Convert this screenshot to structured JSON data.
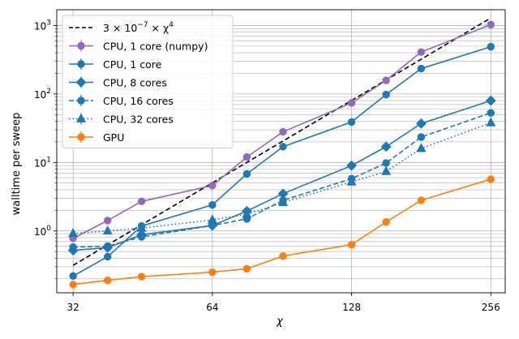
{
  "chart_data": {
    "type": "line",
    "xlabel": "χ",
    "ylabel": "walltime per sweep",
    "x_scale": "log2",
    "y_scale": "log10",
    "xlim": [
      29.5,
      275
    ],
    "ylim": [
      0.125,
      1700
    ],
    "x_ticks": [
      {
        "value": 32,
        "label": "32"
      },
      {
        "value": 64,
        "label": "64"
      },
      {
        "value": 128,
        "label": "128"
      },
      {
        "value": 256,
        "label": "256"
      }
    ],
    "y_ticks": [
      {
        "value": 1,
        "label_base": "10",
        "label_exp": "0"
      },
      {
        "value": 10,
        "label_base": "10",
        "label_exp": "1"
      },
      {
        "value": 100,
        "label_base": "10",
        "label_exp": "2"
      },
      {
        "value": 1000,
        "label_base": "10",
        "label_exp": "3"
      }
    ],
    "grid": true,
    "legend_position": "top-left",
    "reference_line": {
      "label_parts": [
        "3 × 10",
        "−7",
        " × χ",
        "4"
      ],
      "coefficient": 3e-07,
      "exponent": 4,
      "x": [
        32,
        256
      ],
      "color": "#000000",
      "dash": "dashed"
    },
    "x": [
      32,
      38,
      45,
      54,
      64,
      76,
      91,
      108,
      128,
      152,
      181,
      215,
      256
    ],
    "series": [
      {
        "name": "CPU, 1 core (numpy)",
        "color": "#9467bd",
        "marker": "circle",
        "line": "solid",
        "errorbars": true,
        "values": [
          0.78,
          1.42,
          2.7,
          null,
          4.6,
          12.0,
          28.0,
          null,
          74.0,
          158.0,
          410.0,
          null,
          1030.0
        ]
      },
      {
        "name": "CPU, 1 core",
        "color": "#1f77b4",
        "marker": "circle",
        "line": "solid",
        "errorbars": true,
        "values": [
          0.22,
          0.42,
          1.18,
          null,
          2.4,
          6.8,
          17.0,
          null,
          39.0,
          98.0,
          235.0,
          null,
          490.0
        ]
      },
      {
        "name": "CPU, 8 cores",
        "color": "#1f77b4",
        "marker": "diamond",
        "line": "solid",
        "errorbars": true,
        "values": [
          0.52,
          0.57,
          0.88,
          null,
          1.2,
          1.95,
          3.5,
          null,
          9.0,
          17.0,
          37.0,
          null,
          80.0
        ]
      },
      {
        "name": "CPU, 16 cores",
        "color": "#1f77b4",
        "marker": "circle",
        "line": "dashed",
        "errorbars": true,
        "values": [
          0.58,
          0.6,
          0.82,
          null,
          1.2,
          1.5,
          2.8,
          null,
          5.8,
          9.8,
          23.5,
          null,
          53.0
        ]
      },
      {
        "name": "CPU, 32 cores",
        "color": "#1f77b4",
        "marker": "triangle",
        "line": "dotted",
        "errorbars": true,
        "values": [
          0.92,
          1.0,
          1.1,
          null,
          1.45,
          1.75,
          2.6,
          null,
          5.2,
          7.4,
          16.0,
          null,
          38.0
        ]
      },
      {
        "name": "GPU",
        "color": "#ff7f0e",
        "marker": "circle",
        "line": "solid",
        "errorbars": true,
        "values": [
          0.165,
          0.19,
          0.215,
          null,
          0.25,
          0.28,
          0.43,
          null,
          0.63,
          1.35,
          2.8,
          null,
          5.7
        ]
      }
    ]
  }
}
